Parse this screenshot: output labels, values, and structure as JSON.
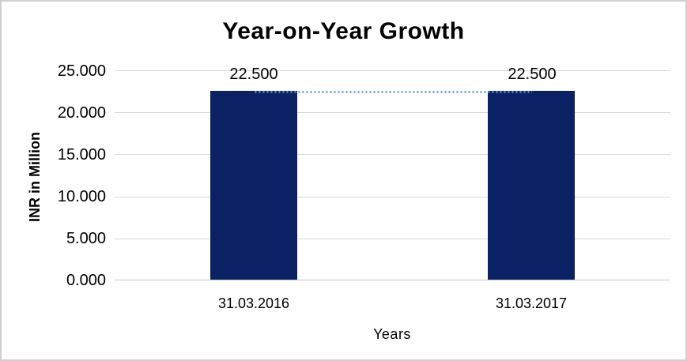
{
  "chart": {
    "title": "Year-on-Year Growth",
    "y_axis": {
      "title": "INR in Million",
      "tick_labels": [
        "25.000",
        "20.000",
        "15.000",
        "10.000",
        "5.000",
        "0.000"
      ]
    },
    "x_axis": {
      "title": "Years",
      "categories": [
        "31.03.2016",
        "31.03.2017"
      ]
    },
    "data_labels": [
      "22.500",
      "22.500"
    ],
    "colors": {
      "bar": "#0a2263",
      "trend_line": "#5b9bd5",
      "gridline": "#d9d9d9",
      "frame_border": "#d0cece",
      "text": "#000000",
      "background": "#ffffff"
    }
  },
  "chart_data": {
    "type": "bar",
    "title": "Year-on-Year Growth",
    "xlabel": "Years",
    "ylabel": "INR in Million",
    "categories": [
      "31.03.2016",
      "31.03.2017"
    ],
    "series": [
      {
        "name": "INR in Million",
        "type": "bar",
        "values": [
          22.5,
          22.5
        ],
        "color": "#0a2263"
      },
      {
        "name": "trend",
        "type": "line",
        "line_style": "dotted",
        "values": [
          22.5,
          22.5
        ],
        "color": "#5b9bd5"
      }
    ],
    "data_labels": [
      "22.500",
      "22.500"
    ],
    "values_formatted": [
      "22.500",
      "22.500"
    ],
    "ylim": [
      0,
      25
    ],
    "ytick_interval": 5,
    "ytick_labels": [
      "0.000",
      "5.000",
      "10.000",
      "15.000",
      "20.000",
      "25.000"
    ],
    "number_format": "0.000",
    "grid": true,
    "legend": "none"
  }
}
